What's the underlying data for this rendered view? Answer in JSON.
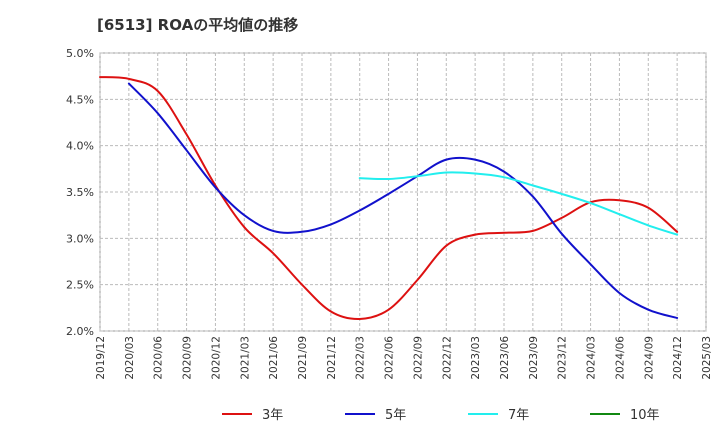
{
  "chart_data": {
    "type": "line",
    "title": "[6513]  ROAの平均値の推移",
    "xlabel": "",
    "ylabel": "",
    "x_ticks": [
      "2019/12",
      "2020/03",
      "2020/06",
      "2020/09",
      "2020/12",
      "2021/03",
      "2021/06",
      "2021/09",
      "2021/12",
      "2022/03",
      "2022/06",
      "2022/09",
      "2022/12",
      "2023/03",
      "2023/06",
      "2023/09",
      "2023/12",
      "2024/03",
      "2024/06",
      "2024/09",
      "2024/12",
      "2025/03"
    ],
    "y_ticks": [
      "2.0%",
      "2.5%",
      "3.0%",
      "3.5%",
      "4.0%",
      "4.5%",
      "5.0%"
    ],
    "ylim": [
      2.0,
      5.0
    ],
    "grid": true,
    "legend_position": "bottom",
    "series": [
      {
        "name": "3年",
        "color": "#dd1111",
        "points": [
          [
            "2019/12",
            4.74
          ],
          [
            "2020/03",
            4.72
          ],
          [
            "2020/06",
            4.59
          ],
          [
            "2020/09",
            4.12
          ],
          [
            "2020/12",
            3.57
          ],
          [
            "2021/03",
            3.12
          ],
          [
            "2021/06",
            2.84
          ],
          [
            "2021/09",
            2.5
          ],
          [
            "2021/12",
            2.21
          ],
          [
            "2022/03",
            2.13
          ],
          [
            "2022/06",
            2.23
          ],
          [
            "2022/09",
            2.55
          ],
          [
            "2022/12",
            2.92
          ],
          [
            "2023/03",
            3.04
          ],
          [
            "2023/06",
            3.06
          ],
          [
            "2023/09",
            3.08
          ],
          [
            "2023/12",
            3.22
          ],
          [
            "2024/03",
            3.39
          ],
          [
            "2024/06",
            3.41
          ],
          [
            "2024/09",
            3.33
          ],
          [
            "2024/12",
            3.07
          ]
        ]
      },
      {
        "name": "5年",
        "color": "#1111cc",
        "points": [
          [
            "2020/03",
            4.67
          ],
          [
            "2020/06",
            4.35
          ],
          [
            "2020/09",
            3.95
          ],
          [
            "2020/12",
            3.55
          ],
          [
            "2021/03",
            3.25
          ],
          [
            "2021/06",
            3.08
          ],
          [
            "2021/09",
            3.07
          ],
          [
            "2021/12",
            3.15
          ],
          [
            "2022/03",
            3.3
          ],
          [
            "2022/06",
            3.48
          ],
          [
            "2022/09",
            3.67
          ],
          [
            "2022/12",
            3.85
          ],
          [
            "2023/03",
            3.85
          ],
          [
            "2023/06",
            3.72
          ],
          [
            "2023/09",
            3.45
          ],
          [
            "2023/12",
            3.05
          ],
          [
            "2024/03",
            2.72
          ],
          [
            "2024/06",
            2.41
          ],
          [
            "2024/09",
            2.23
          ],
          [
            "2024/12",
            2.14
          ]
        ]
      },
      {
        "name": "7年",
        "color": "#22eeee",
        "points": [
          [
            "2022/03",
            3.65
          ],
          [
            "2022/06",
            3.64
          ],
          [
            "2022/09",
            3.67
          ],
          [
            "2022/12",
            3.71
          ],
          [
            "2023/03",
            3.7
          ],
          [
            "2023/06",
            3.66
          ],
          [
            "2023/09",
            3.57
          ],
          [
            "2023/12",
            3.48
          ],
          [
            "2024/03",
            3.38
          ],
          [
            "2024/06",
            3.26
          ],
          [
            "2024/09",
            3.14
          ],
          [
            "2024/12",
            3.04
          ]
        ]
      },
      {
        "name": "10年",
        "color": "#118811",
        "points": []
      }
    ]
  }
}
